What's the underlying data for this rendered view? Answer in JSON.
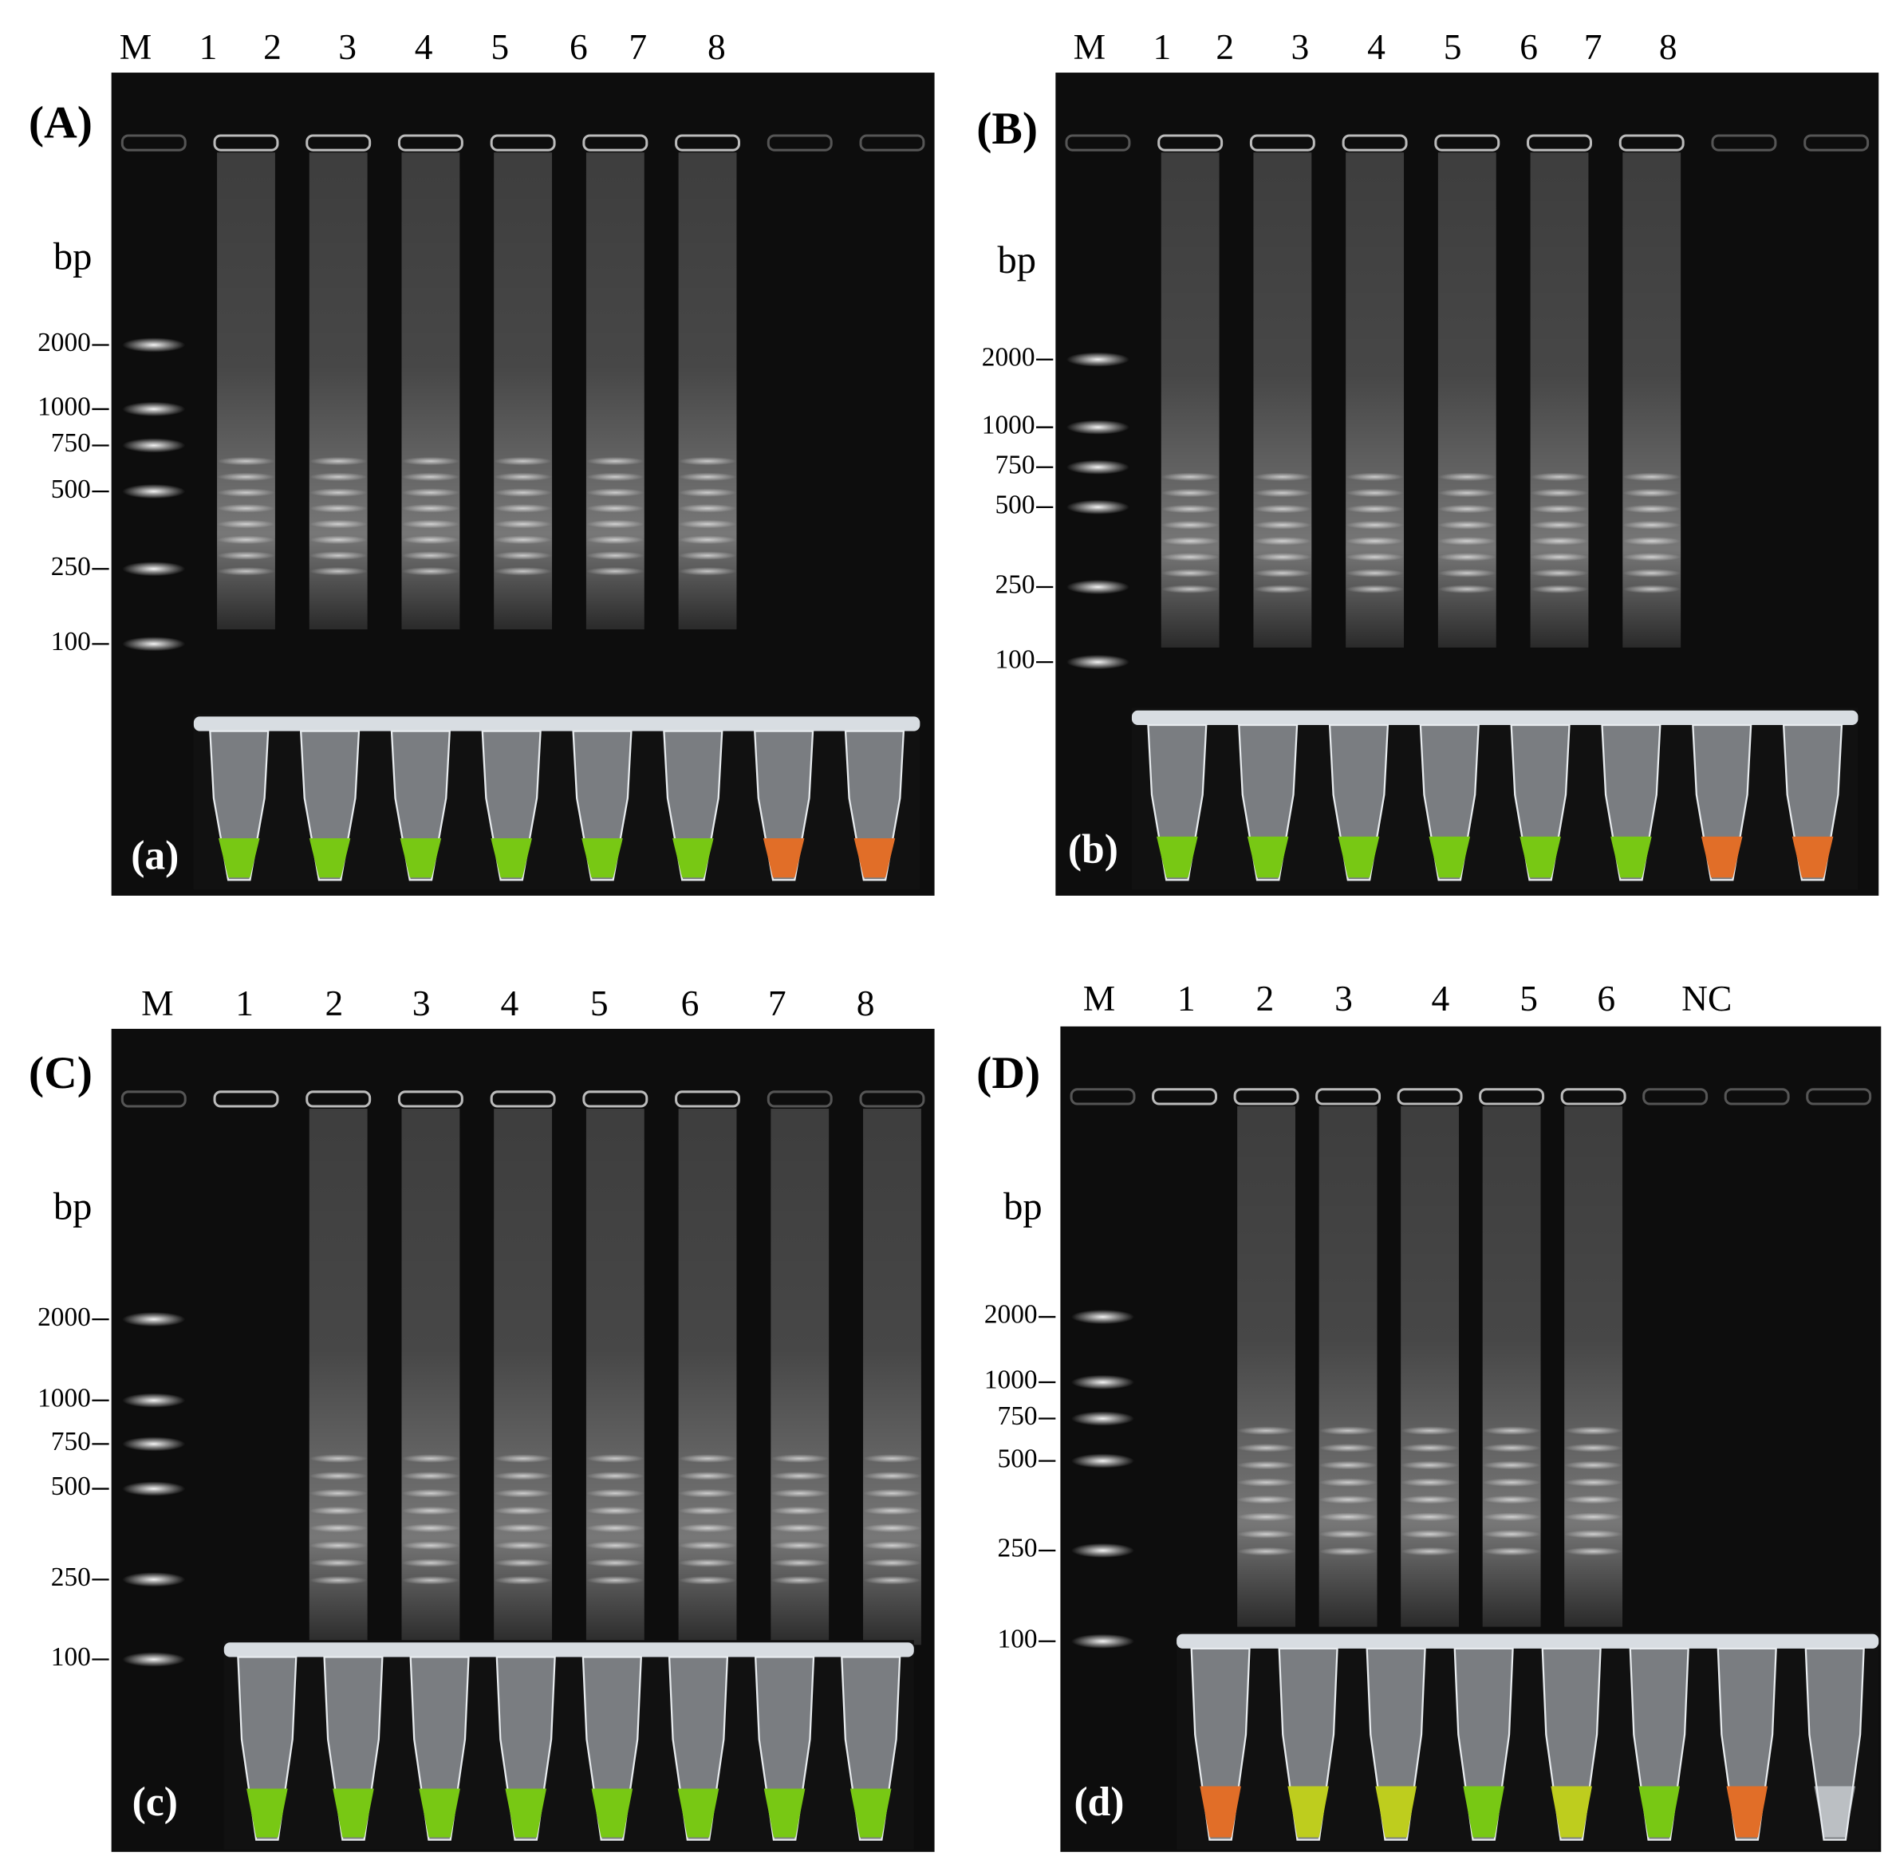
{
  "panels": [
    {
      "label": "(A)",
      "sub_label": "(a)",
      "bp_label": "bp",
      "lanes": [
        "M",
        "1",
        "2",
        "3",
        "4",
        "5",
        "6",
        "7",
        "8"
      ],
      "markers": [
        "2000",
        "1000",
        "750",
        "500",
        "250",
        "100"
      ]
    },
    {
      "label": "(B)",
      "sub_label": "(b)",
      "bp_label": "bp",
      "lanes": [
        "M",
        "1",
        "2",
        "3",
        "4",
        "5",
        "6",
        "7",
        "8"
      ],
      "markers": [
        "2000",
        "1000",
        "750",
        "500",
        "250",
        "100"
      ]
    },
    {
      "label": "(C)",
      "sub_label": "(c)",
      "bp_label": "bp",
      "lanes": [
        "M",
        "1",
        "2",
        "3",
        "4",
        "5",
        "6",
        "7",
        "8"
      ],
      "markers": [
        "2000",
        "1000",
        "750",
        "500",
        "250",
        "100"
      ]
    },
    {
      "label": "(D)",
      "sub_label": "(d)",
      "bp_label": "bp",
      "lanes": [
        "M",
        "1",
        "2",
        "3",
        "4",
        "5",
        "6",
        "NC"
      ],
      "markers": [
        "2000",
        "1000",
        "750",
        "500",
        "250",
        "100"
      ]
    }
  ]
}
